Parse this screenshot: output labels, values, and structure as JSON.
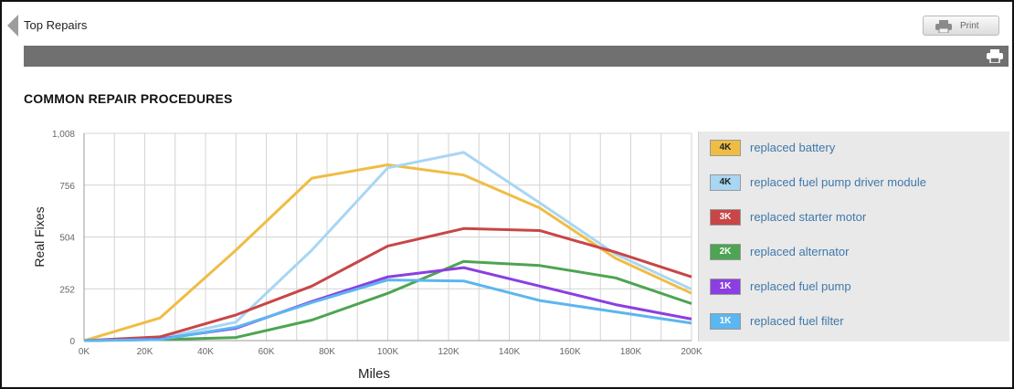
{
  "header": {
    "breadcrumb": "Top Repairs",
    "print_label": "Print"
  },
  "section_title": "COMMON REPAIR PROCEDURES",
  "legend": [
    {
      "badge": "4K",
      "label": "replaced battery",
      "color": "#efbd44",
      "text_color": "#222222"
    },
    {
      "badge": "4K",
      "label": "replaced fuel pump driver module",
      "color": "#a9d6f3",
      "text_color": "#222222"
    },
    {
      "badge": "3K",
      "label": "replaced starter motor",
      "color": "#c84646",
      "text_color": "#ffffff"
    },
    {
      "badge": "2K",
      "label": "replaced alternator",
      "color": "#4da452",
      "text_color": "#ffffff"
    },
    {
      "badge": "1K",
      "label": "replaced fuel pump",
      "color": "#8b3fe0",
      "text_color": "#ffffff"
    },
    {
      "badge": "1K",
      "label": "replaced fuel filter",
      "color": "#5cb6ef",
      "text_color": "#ffffff"
    }
  ],
  "chart_data": {
    "type": "line",
    "xlabel": "Miles",
    "ylabel": "Real Fixes",
    "x": [
      0,
      25000,
      50000,
      75000,
      100000,
      125000,
      150000,
      175000,
      200000
    ],
    "xlim": [
      0,
      200000
    ],
    "ylim": [
      0,
      1008
    ],
    "x_ticks": [
      0,
      20000,
      40000,
      60000,
      80000,
      100000,
      120000,
      140000,
      160000,
      180000,
      200000
    ],
    "x_tick_labels": [
      "0K",
      "20K",
      "40K",
      "60K",
      "80K",
      "100K",
      "120K",
      "140K",
      "160K",
      "180K",
      "200K"
    ],
    "y_ticks": [
      0,
      252,
      504,
      756,
      1008
    ],
    "y_tick_labels": [
      "0",
      "252",
      "504",
      "756",
      "1,008"
    ],
    "grid": true,
    "legend_position": "right",
    "series": [
      {
        "name": "replaced battery",
        "color": "#efbd44",
        "values": [
          0,
          110,
          440,
          790,
          855,
          805,
          645,
          400,
          230
        ]
      },
      {
        "name": "replaced fuel pump driver module",
        "color": "#a9d6f3",
        "values": [
          0,
          10,
          90,
          440,
          840,
          915,
          670,
          420,
          250
        ]
      },
      {
        "name": "replaced starter motor",
        "color": "#c84646",
        "values": [
          0,
          18,
          125,
          265,
          460,
          545,
          535,
          430,
          310
        ]
      },
      {
        "name": "replaced alternator",
        "color": "#4da452",
        "values": [
          0,
          5,
          15,
          100,
          230,
          385,
          365,
          305,
          180
        ]
      },
      {
        "name": "replaced fuel pump",
        "color": "#8b3fe0",
        "values": [
          0,
          8,
          60,
          190,
          310,
          355,
          265,
          175,
          105
        ]
      },
      {
        "name": "replaced fuel filter",
        "color": "#5cb6ef",
        "values": [
          0,
          5,
          65,
          185,
          295,
          290,
          195,
          140,
          85
        ]
      }
    ]
  }
}
